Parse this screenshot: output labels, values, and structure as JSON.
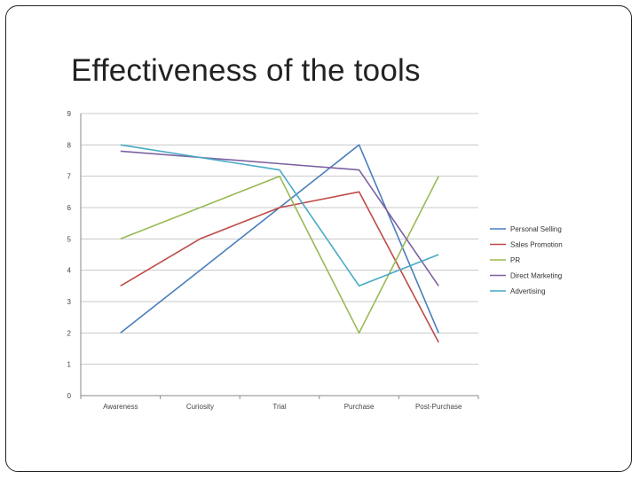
{
  "slide": {
    "title": "Effectiveness of the tools"
  },
  "chart_data": {
    "type": "line",
    "title": "",
    "xlabel": "",
    "ylabel": "",
    "categories": [
      "Awareness",
      "Curiosity",
      "Trial",
      "Purchase",
      "Post-Purchase"
    ],
    "ylim": [
      0,
      9
    ],
    "yticks": [
      0,
      1,
      2,
      3,
      4,
      5,
      6,
      7,
      8,
      9
    ],
    "grid": true,
    "legend_position": "right",
    "series": [
      {
        "name": "Personal Selling",
        "color": "#4a7ebb",
        "values": [
          2,
          4,
          6,
          8,
          2
        ]
      },
      {
        "name": "Sales Promotion",
        "color": "#be4b48",
        "values": [
          3.5,
          5,
          6,
          6.5,
          1.7
        ]
      },
      {
        "name": "PR",
        "color": "#98b954",
        "values": [
          5,
          6,
          7,
          2,
          7
        ]
      },
      {
        "name": "Direct Marketing",
        "color": "#7d60a0",
        "values": [
          7.8,
          7.6,
          7.4,
          7.2,
          3.5
        ]
      },
      {
        "name": "Advertising",
        "color": "#46aac5",
        "values": [
          8,
          7.6,
          7.2,
          3.5,
          4.5
        ]
      }
    ]
  }
}
